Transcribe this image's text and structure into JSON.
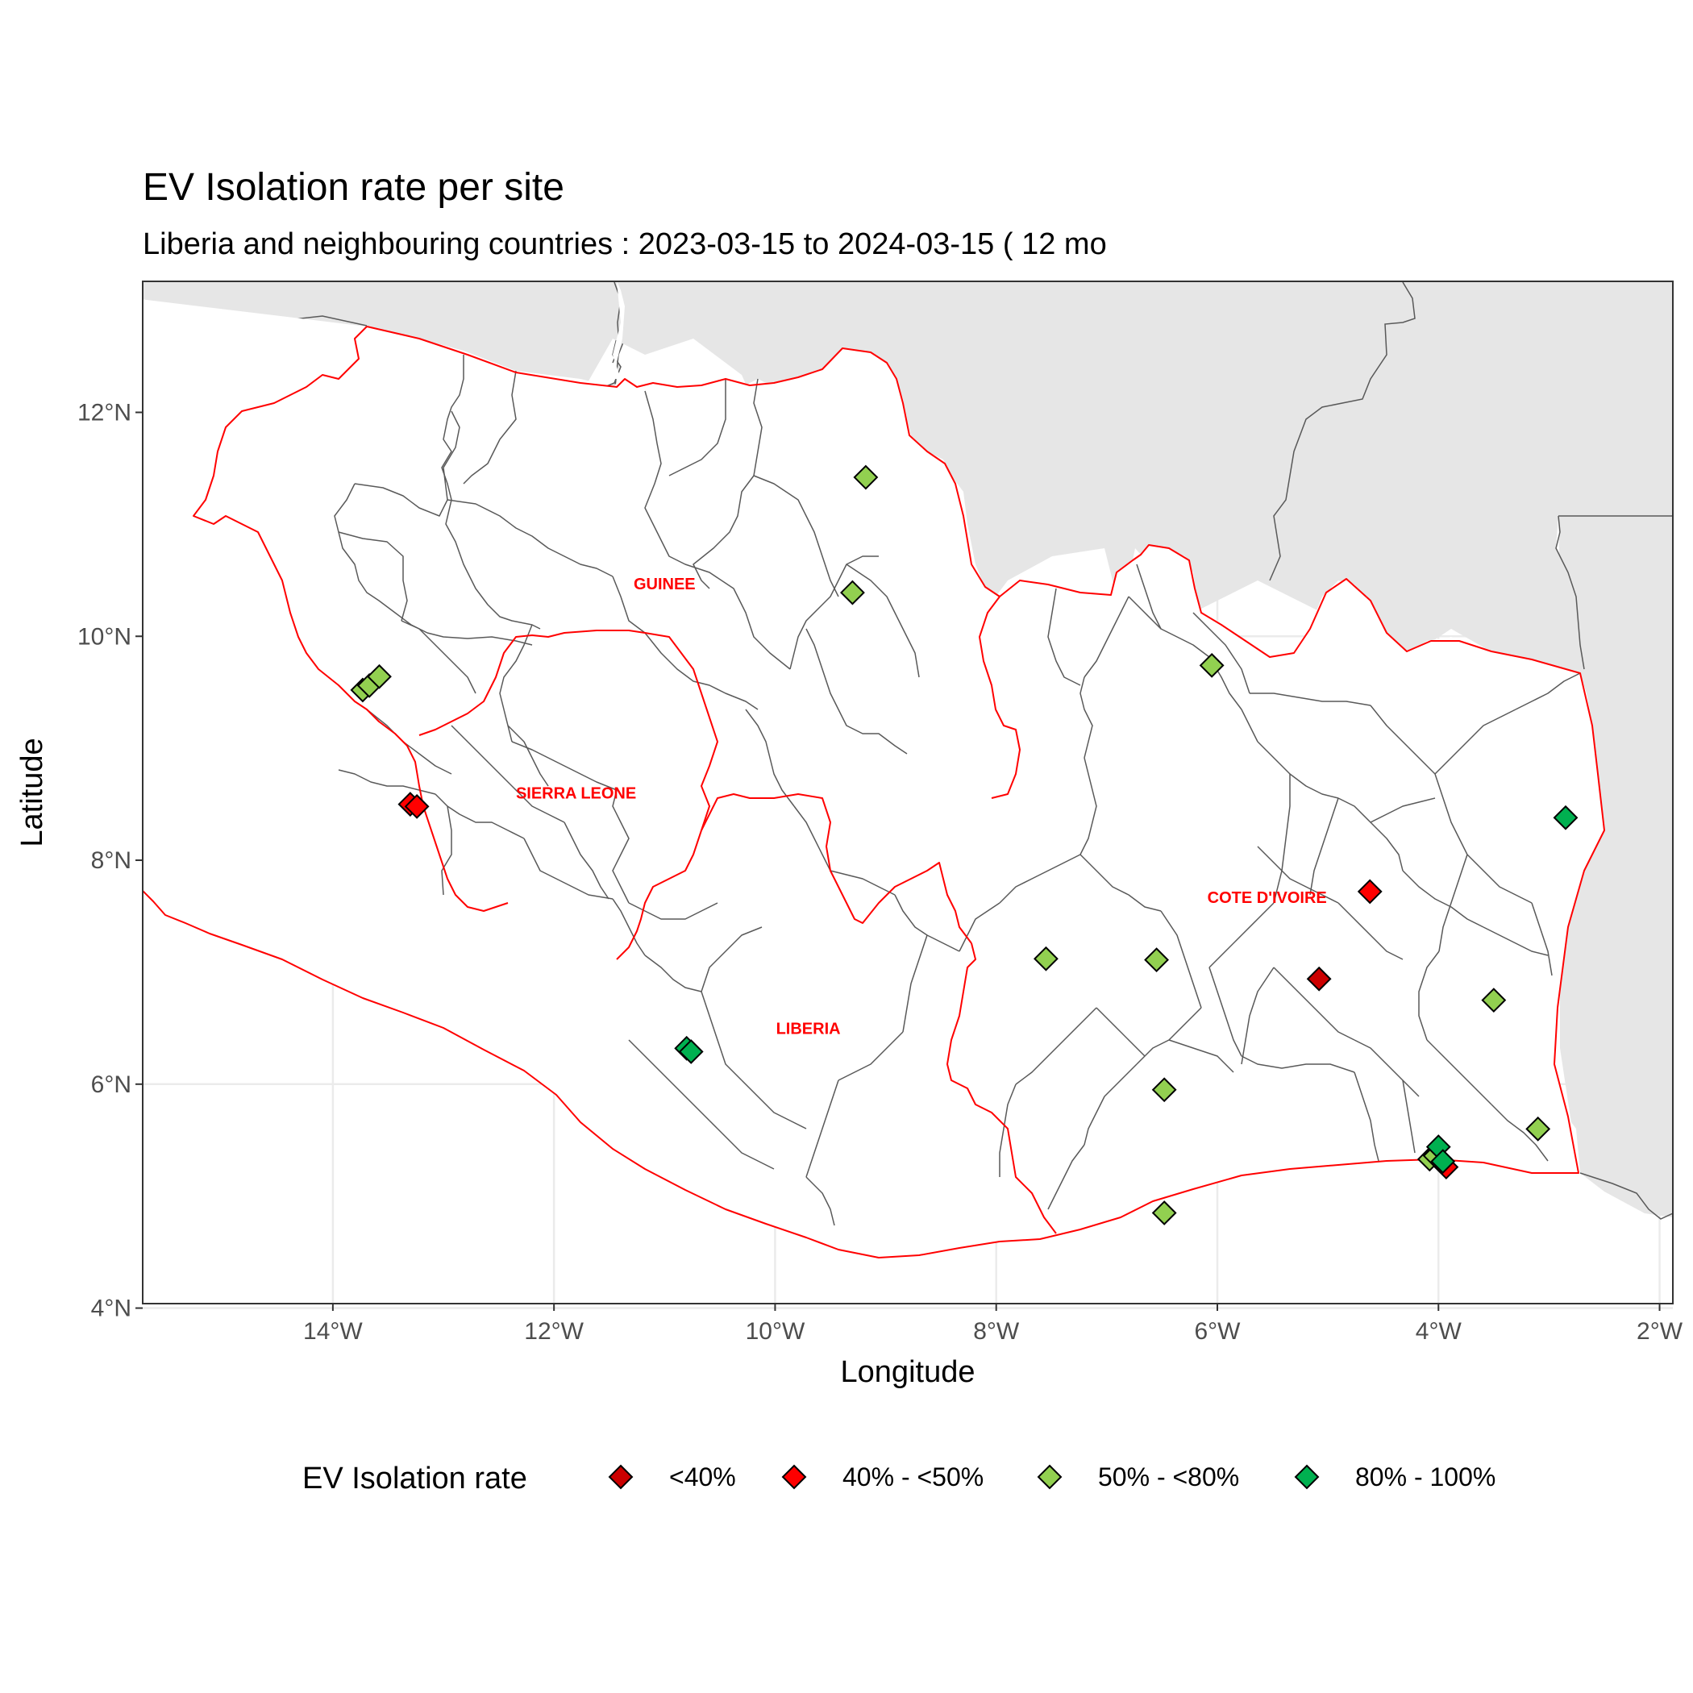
{
  "chart_data": {
    "type": "scatter",
    "title": "EV Isolation rate per site",
    "subtitle": "Liberia and neighbouring countries : 2023-03-15  to  2024-03-15 ( 12 mo",
    "xlabel": "Longitude",
    "ylabel": "Latitude",
    "xlim": [
      -15.72,
      -1.88
    ],
    "ylim": [
      4.04,
      13.17
    ],
    "x_ticks": [
      {
        "value": -14,
        "label": "14°W"
      },
      {
        "value": -12,
        "label": "12°W"
      },
      {
        "value": -10,
        "label": "10°W"
      },
      {
        "value": -8,
        "label": "8°W"
      },
      {
        "value": -6,
        "label": "6°W"
      },
      {
        "value": -4,
        "label": "4°W"
      },
      {
        "value": -2,
        "label": "2°W"
      }
    ],
    "y_ticks": [
      {
        "value": 4,
        "label": "4°N"
      },
      {
        "value": 6,
        "label": "6°N"
      },
      {
        "value": 8,
        "label": "8°N"
      },
      {
        "value": 10,
        "label": "10°N"
      },
      {
        "value": 12,
        "label": "12°N"
      }
    ],
    "grid": true,
    "legend": {
      "title": "EV Isolation rate",
      "position": "bottom",
      "entries": [
        {
          "label": "<40%",
          "color": "#cc0000"
        },
        {
          "label": "40% - <50%",
          "color": "#ff0000"
        },
        {
          "label": "50% - <80%",
          "color": "#92d050"
        },
        {
          "label": "80% - 100%",
          "color": "#00b050"
        }
      ]
    },
    "country_labels": [
      {
        "name": "GUINEE",
        "lon": -11.0,
        "lat": 10.42
      },
      {
        "name": "SIERRA LEONE",
        "lon": -11.8,
        "lat": 8.55
      },
      {
        "name": "LIBERIA",
        "lon": -9.7,
        "lat": 6.45
      },
      {
        "name": "COTE D'IVOIRE",
        "lon": -5.55,
        "lat": 7.62
      }
    ],
    "series": [
      {
        "name": "<40%",
        "color": "#cc0000",
        "points": [
          {
            "lon": -5.08,
            "lat": 6.94
          }
        ]
      },
      {
        "name": "40% - <50%",
        "color": "#ff0000",
        "points": [
          {
            "lon": -13.3,
            "lat": 8.5
          },
          {
            "lon": -13.24,
            "lat": 8.48
          },
          {
            "lon": -4.62,
            "lat": 7.72
          },
          {
            "lon": -3.93,
            "lat": 5.26
          }
        ]
      },
      {
        "name": "50% - <80%",
        "color": "#92d050",
        "points": [
          {
            "lon": -9.18,
            "lat": 11.42
          },
          {
            "lon": -9.3,
            "lat": 10.39
          },
          {
            "lon": -13.73,
            "lat": 9.52
          },
          {
            "lon": -13.67,
            "lat": 9.56
          },
          {
            "lon": -13.58,
            "lat": 9.64
          },
          {
            "lon": -6.05,
            "lat": 9.74
          },
          {
            "lon": -7.55,
            "lat": 7.12
          },
          {
            "lon": -6.55,
            "lat": 7.11
          },
          {
            "lon": -3.5,
            "lat": 6.75
          },
          {
            "lon": -6.48,
            "lat": 5.95
          },
          {
            "lon": -3.1,
            "lat": 5.6
          },
          {
            "lon": -6.48,
            "lat": 4.85
          },
          {
            "lon": -4.08,
            "lat": 5.33
          },
          {
            "lon": -4.03,
            "lat": 5.36
          }
        ]
      },
      {
        "name": "80% - 100%",
        "color": "#00b050",
        "points": [
          {
            "lon": -10.8,
            "lat": 6.32
          },
          {
            "lon": -10.76,
            "lat": 6.29
          },
          {
            "lon": -2.85,
            "lat": 8.38
          },
          {
            "lon": -4.0,
            "lat": 5.44
          },
          {
            "lon": -3.96,
            "lat": 5.31
          }
        ]
      }
    ]
  }
}
